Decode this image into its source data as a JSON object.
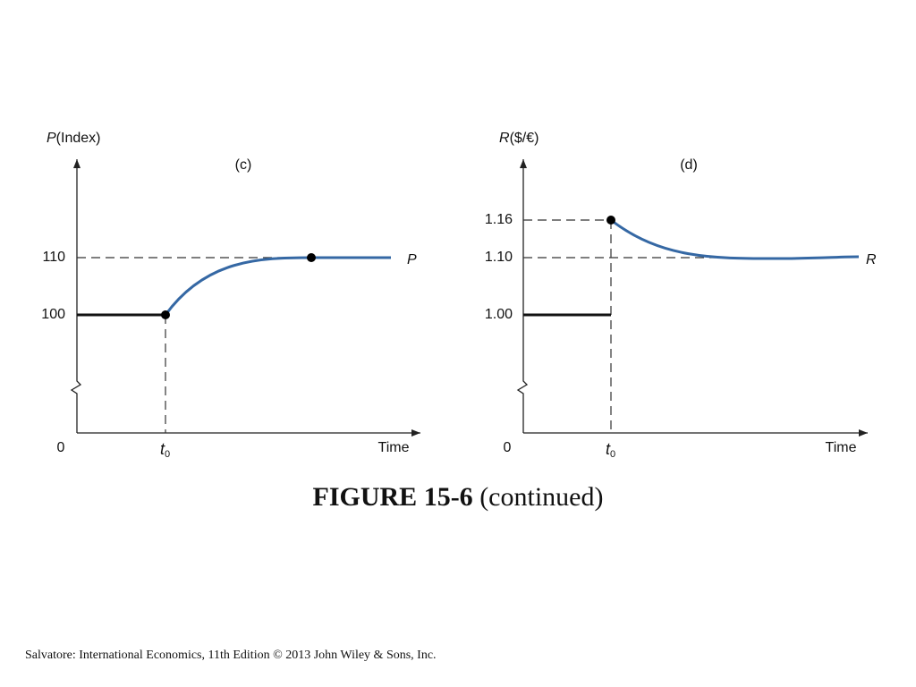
{
  "panels": [
    {
      "var": "P",
      "unit": "(Index)",
      "tag": "(c)",
      "ticks": [
        "110",
        "100"
      ],
      "origin": "0",
      "t": "t",
      "t_sub": "0",
      "x_label": "Time",
      "curve_label": "P"
    },
    {
      "var": "R",
      "unit": "($/€)",
      "tag": "(d)",
      "ticks": [
        "1.16",
        "1.10",
        "1.00"
      ],
      "origin": "0",
      "t": "t",
      "t_sub": "0",
      "x_label": "Time",
      "curve_label": "R"
    }
  ],
  "caption": {
    "bold": "FIGURE 15-6",
    "rest": "(continued)"
  },
  "footer": "Salvatore: International Economics, 11th Edition  © 2013 John Wiley & Sons, Inc."
}
